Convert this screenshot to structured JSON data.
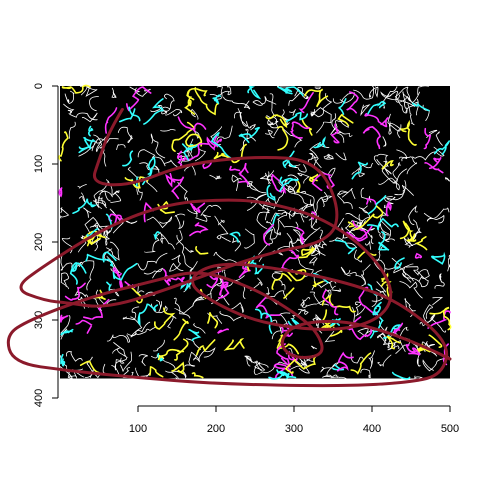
{
  "chart_data": {
    "type": "scatter",
    "title": "",
    "xlabel": "",
    "ylabel": "",
    "xlim": [
      0,
      500
    ],
    "ylim": [
      400,
      0
    ],
    "x_ticks": [
      100,
      200,
      300,
      400,
      500
    ],
    "y_ticks": [
      0,
      100,
      200,
      300,
      400
    ],
    "x_tick_labels": [
      "100",
      "200",
      "300",
      "400",
      "500"
    ],
    "y_tick_labels": [
      "0",
      "100",
      "200",
      "300",
      "400"
    ],
    "raster": {
      "extent_x": [
        0,
        500
      ],
      "extent_y": [
        0,
        375
      ],
      "background": "#000000",
      "edge_colors": [
        "#ffffff",
        "#ffff33",
        "#ff33ff",
        "#33ffff"
      ]
    },
    "overlay_path": {
      "color": "#8b1a2b",
      "points": [
        [
          80,
          30
        ],
        [
          62,
          60
        ],
        [
          50,
          95
        ],
        [
          40,
          125
        ],
        [
          90,
          128
        ],
        [
          160,
          100
        ],
        [
          250,
          90
        ],
        [
          330,
          95
        ],
        [
          360,
          160
        ],
        [
          345,
          200
        ],
        [
          260,
          215
        ],
        [
          140,
          260
        ],
        [
          60,
          285
        ],
        [
          10,
          278
        ],
        [
          -20,
          275
        ],
        [
          -60,
          260
        ],
        [
          -20,
          230
        ],
        [
          60,
          180
        ],
        [
          140,
          150
        ],
        [
          220,
          145
        ],
        [
          270,
          150
        ],
        [
          340,
          170
        ],
        [
          400,
          215
        ],
        [
          430,
          265
        ],
        [
          410,
          300
        ],
        [
          350,
          315
        ],
        [
          260,
          305
        ],
        [
          200,
          280
        ],
        [
          160,
          250
        ],
        [
          200,
          225
        ],
        [
          290,
          235
        ],
        [
          380,
          255
        ],
        [
          440,
          280
        ],
        [
          500,
          330
        ],
        [
          490,
          370
        ],
        [
          450,
          380
        ],
        [
          360,
          385
        ],
        [
          200,
          382
        ],
        [
          80,
          372
        ],
        [
          10,
          365
        ],
        [
          -60,
          355
        ],
        [
          -70,
          320
        ],
        [
          -40,
          300
        ],
        [
          40,
          270
        ],
        [
          120,
          250
        ],
        [
          180,
          235
        ],
        [
          250,
          260
        ],
        [
          300,
          290
        ],
        [
          330,
          315
        ],
        [
          340,
          345
        ],
        [
          300,
          350
        ],
        [
          280,
          330
        ],
        [
          300,
          305
        ],
        [
          360,
          300
        ],
        [
          420,
          315
        ],
        [
          480,
          340
        ],
        [
          500,
          350
        ]
      ]
    }
  }
}
